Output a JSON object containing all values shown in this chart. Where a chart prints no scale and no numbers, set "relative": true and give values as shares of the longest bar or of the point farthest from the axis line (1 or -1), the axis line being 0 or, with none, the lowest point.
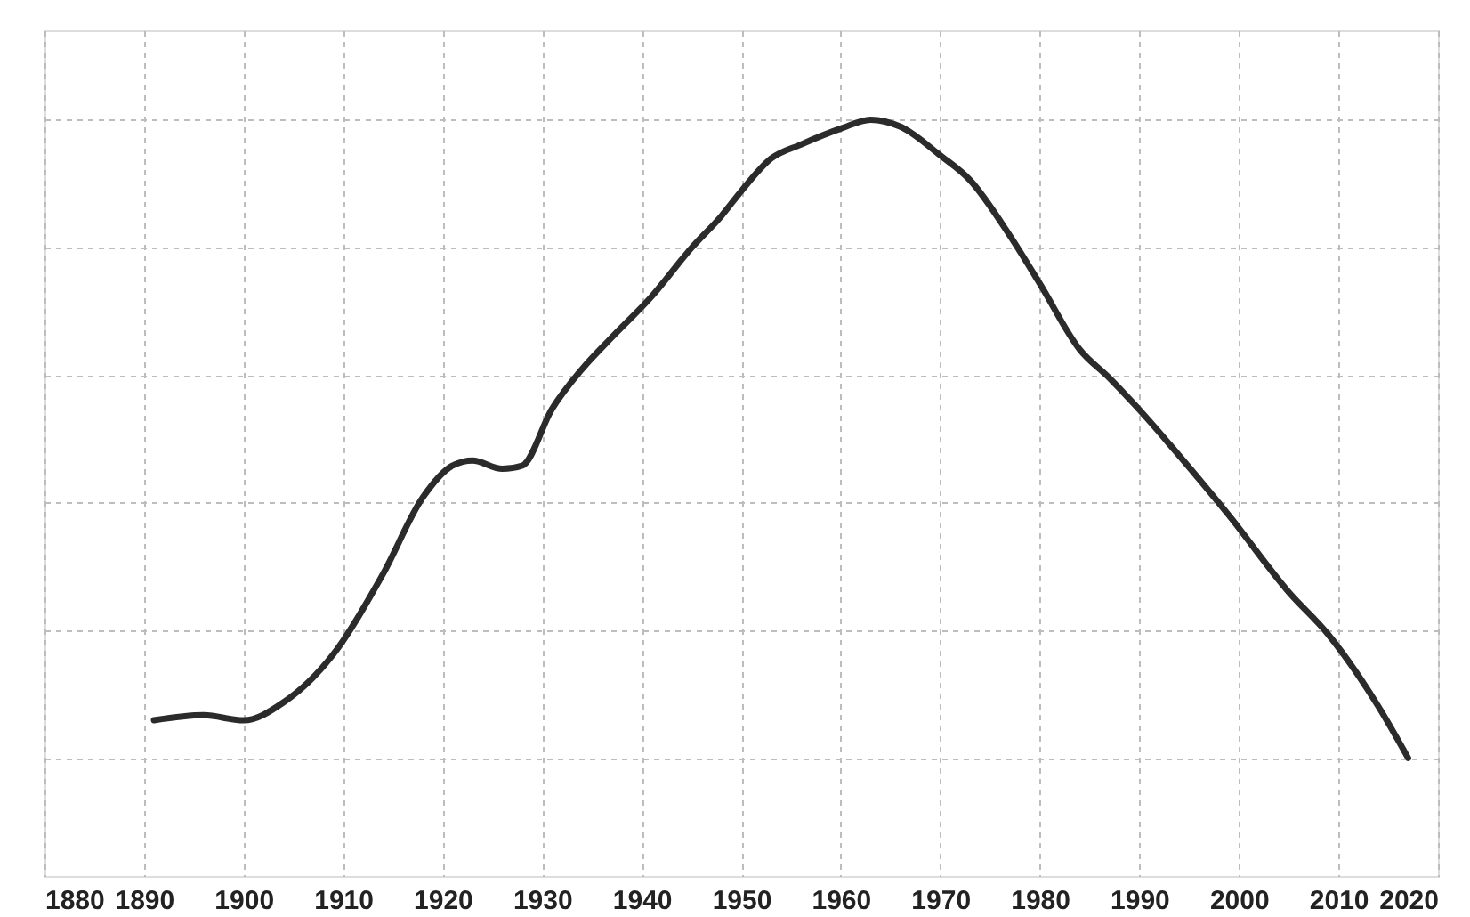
{
  "chart_data": {
    "type": "line",
    "relative": true,
    "x": [
      1891,
      1896,
      1900,
      1904,
      1909,
      1914,
      1918,
      1921,
      1923,
      1926,
      1928,
      1931,
      1934,
      1937,
      1941,
      1945,
      1948,
      1950,
      1953,
      1956,
      1960,
      1963,
      1966,
      1970,
      1973,
      1977,
      1980,
      1984,
      1987,
      1991,
      1993,
      1999,
      2005,
      2009,
      2014,
      2017
    ],
    "series": [
      {
        "color": "#2b2b2b",
        "values": [
          0.059,
          0.067,
          0.059,
          0.087,
          0.162,
          0.288,
          0.408,
          0.458,
          0.466,
          0.453,
          0.458,
          0.547,
          0.609,
          0.659,
          0.723,
          0.799,
          0.849,
          0.888,
          0.939,
          0.961,
          0.986,
          1,
          0.989,
          0.944,
          0.905,
          0.818,
          0.743,
          0.64,
          0.595,
          0.528,
          0.492,
          0.38,
          0.26,
          0.193,
          0.081,
          0
        ]
      }
    ],
    "xlim": [
      1880,
      2020
    ],
    "xticks": [
      1880,
      1890,
      1900,
      1910,
      1920,
      1930,
      1940,
      1950,
      1960,
      1970,
      1980,
      1990,
      2000,
      2010,
      2020
    ],
    "grid": true,
    "marker": "none",
    "line_style": "solid"
  }
}
